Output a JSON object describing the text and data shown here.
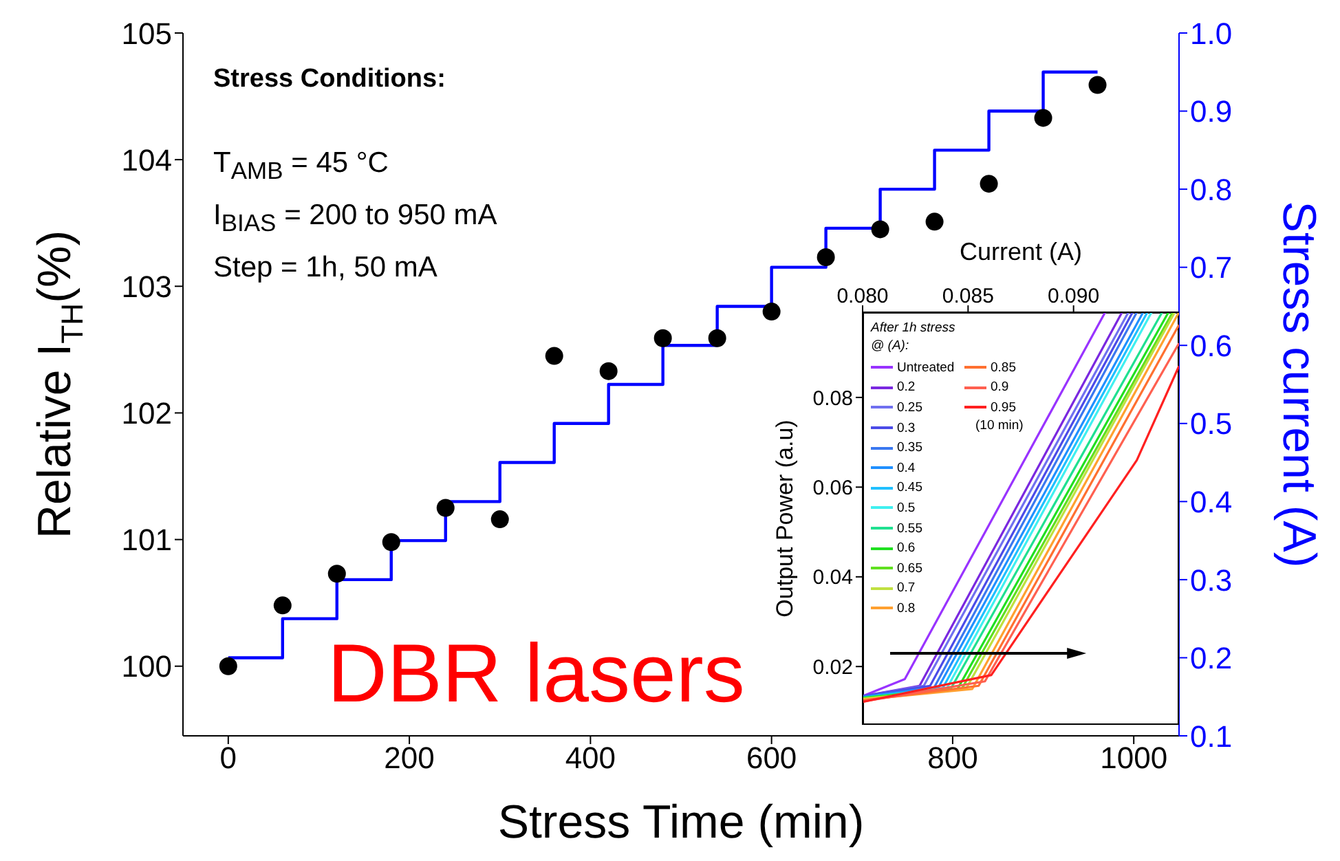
{
  "chart_data": [
    {
      "type": "scatter",
      "xlabel": "Stress Time (min)",
      "ylabel": "Relative I$_{TH}$(%)",
      "y2label": "Stress current (A)",
      "xlim": [
        -50,
        1050
      ],
      "xticks": [
        0,
        200,
        400,
        600,
        800,
        1000
      ],
      "ylim": [
        99.45,
        105
      ],
      "yticks": [
        100,
        101,
        102,
        103,
        104,
        105
      ],
      "y2lim": [
        0.1,
        1.0
      ],
      "y2ticks": [
        0.1,
        0.2,
        0.3,
        0.4,
        0.5,
        0.6,
        0.7,
        0.8,
        0.9,
        {
          "value": 1,
          "label": "1.0"
        }
      ],
      "annotations": [
        "Stress Conditions:",
        "T$_{AMB}$ = 45 °C",
        "I$_{BIAS}$ = 200 to 950 mA",
        "Step = 1h, 50 mA",
        "DBR lasers"
      ],
      "x": [
        0,
        60,
        120,
        180,
        240,
        300,
        360,
        420,
        480,
        540,
        600,
        660,
        720,
        780,
        840,
        900,
        960
      ],
      "series": [
        {
          "type": "scatter",
          "marker": "circle",
          "color": "#000000",
          "values": [
            100.0,
            100.48,
            100.73,
            100.98,
            101.25,
            101.16,
            102.45,
            102.33,
            102.59,
            102.59,
            102.8,
            103.23,
            103.45,
            103.51,
            103.81,
            104.33,
            104.59
          ]
        },
        {
          "type": "step",
          "axis": "y2",
          "color": "#0000ff",
          "values": [
            0.2,
            0.25,
            0.3,
            0.35,
            0.4,
            0.45,
            0.5,
            0.55,
            0.6,
            0.65,
            0.7,
            0.75,
            0.8,
            0.85,
            0.9,
            0.95,
            0.95
          ]
        }
      ]
    },
    {
      "type": "line",
      "xlabel": "Current (A)",
      "ylabel": "Output Power (a.u)",
      "xlim": [
        0.08,
        0.095
      ],
      "xticks": [
        {
          "value": 0.08,
          "label": "0.080"
        },
        {
          "value": 0.085,
          "label": "0.085"
        },
        {
          "value": 0.09,
          "label": "0.090"
        }
      ],
      "ylim": [
        0.007,
        0.099
      ],
      "yticks": [
        0.02,
        0.04,
        0.06,
        0.08
      ],
      "legend": "top left",
      "legend_title": "After 1h stress @ (A):",
      "annotations": [
        "(10 min)"
      ],
      "series": [
        {
          "name": "Untreated",
          "color": "#9933ff",
          "x": [
            0.08,
            0.082,
            0.0915
          ],
          "values": [
            0.0134,
            0.0172,
            0.099
          ]
        },
        {
          "name": "0.2",
          "color": "#7a28e0",
          "x": [
            0.08,
            0.0827,
            0.0923
          ],
          "values": [
            0.0134,
            0.0157,
            0.099
          ]
        },
        {
          "name": "0.25",
          "color": "#7070f0",
          "x": [
            0.08,
            0.0829,
            0.0926
          ],
          "values": [
            0.0134,
            0.0157,
            0.099
          ]
        },
        {
          "name": "0.3",
          "color": "#4b4be8",
          "x": [
            0.08,
            0.0832,
            0.0928
          ],
          "values": [
            0.0134,
            0.0157,
            0.099
          ]
        },
        {
          "name": "0.35",
          "color": "#3a78f0",
          "x": [
            0.08,
            0.0834,
            0.093
          ],
          "values": [
            0.0132,
            0.0154,
            0.099
          ]
        },
        {
          "name": "0.4",
          "color": "#2090ff",
          "x": [
            0.08,
            0.0836,
            0.0933
          ],
          "values": [
            0.0132,
            0.0154,
            0.099
          ]
        },
        {
          "name": "0.45",
          "color": "#20c0ff",
          "x": [
            0.08,
            0.0838,
            0.0935
          ],
          "values": [
            0.013,
            0.0152,
            0.099
          ]
        },
        {
          "name": "0.5",
          "color": "#40f0f0",
          "x": [
            0.08,
            0.084,
            0.0937
          ],
          "values": [
            0.013,
            0.0152,
            0.099
          ]
        },
        {
          "name": "0.55",
          "color": "#20e090",
          "x": [
            0.08,
            0.0842,
            0.0942
          ],
          "values": [
            0.013,
            0.0152,
            0.099
          ]
        },
        {
          "name": "0.6",
          "color": "#20e020",
          "x": [
            0.08,
            0.0845,
            0.0945
          ],
          "values": [
            0.013,
            0.015,
            0.099
          ]
        },
        {
          "name": "0.65",
          "color": "#60e020",
          "x": [
            0.08,
            0.0847,
            0.0947
          ],
          "values": [
            0.0128,
            0.015,
            0.099
          ]
        },
        {
          "name": "0.7",
          "color": "#c0e040",
          "x": [
            0.08,
            0.0849,
            0.0948
          ],
          "values": [
            0.0128,
            0.015,
            0.099
          ]
        },
        {
          "name": "0.8",
          "color": "#ffa030",
          "x": [
            0.08,
            0.0852,
            0.095
          ],
          "values": [
            0.0126,
            0.015,
            0.099
          ]
        },
        {
          "name": "0.85",
          "color": "#ff7030",
          "x": [
            0.08,
            0.0855,
            0.095
          ],
          "values": [
            0.0124,
            0.0157,
            0.0962
          ]
        },
        {
          "name": "0.9",
          "color": "#ff6050",
          "x": [
            0.08,
            0.0858,
            0.095
          ],
          "values": [
            0.0122,
            0.0167,
            0.0921
          ]
        },
        {
          "name": "0.95",
          "color": "#ff2020",
          "x": [
            0.08,
            0.0861,
            0.093,
            0.095
          ],
          "values": [
            0.0121,
            0.0181,
            0.066,
            0.087
          ]
        }
      ]
    }
  ]
}
